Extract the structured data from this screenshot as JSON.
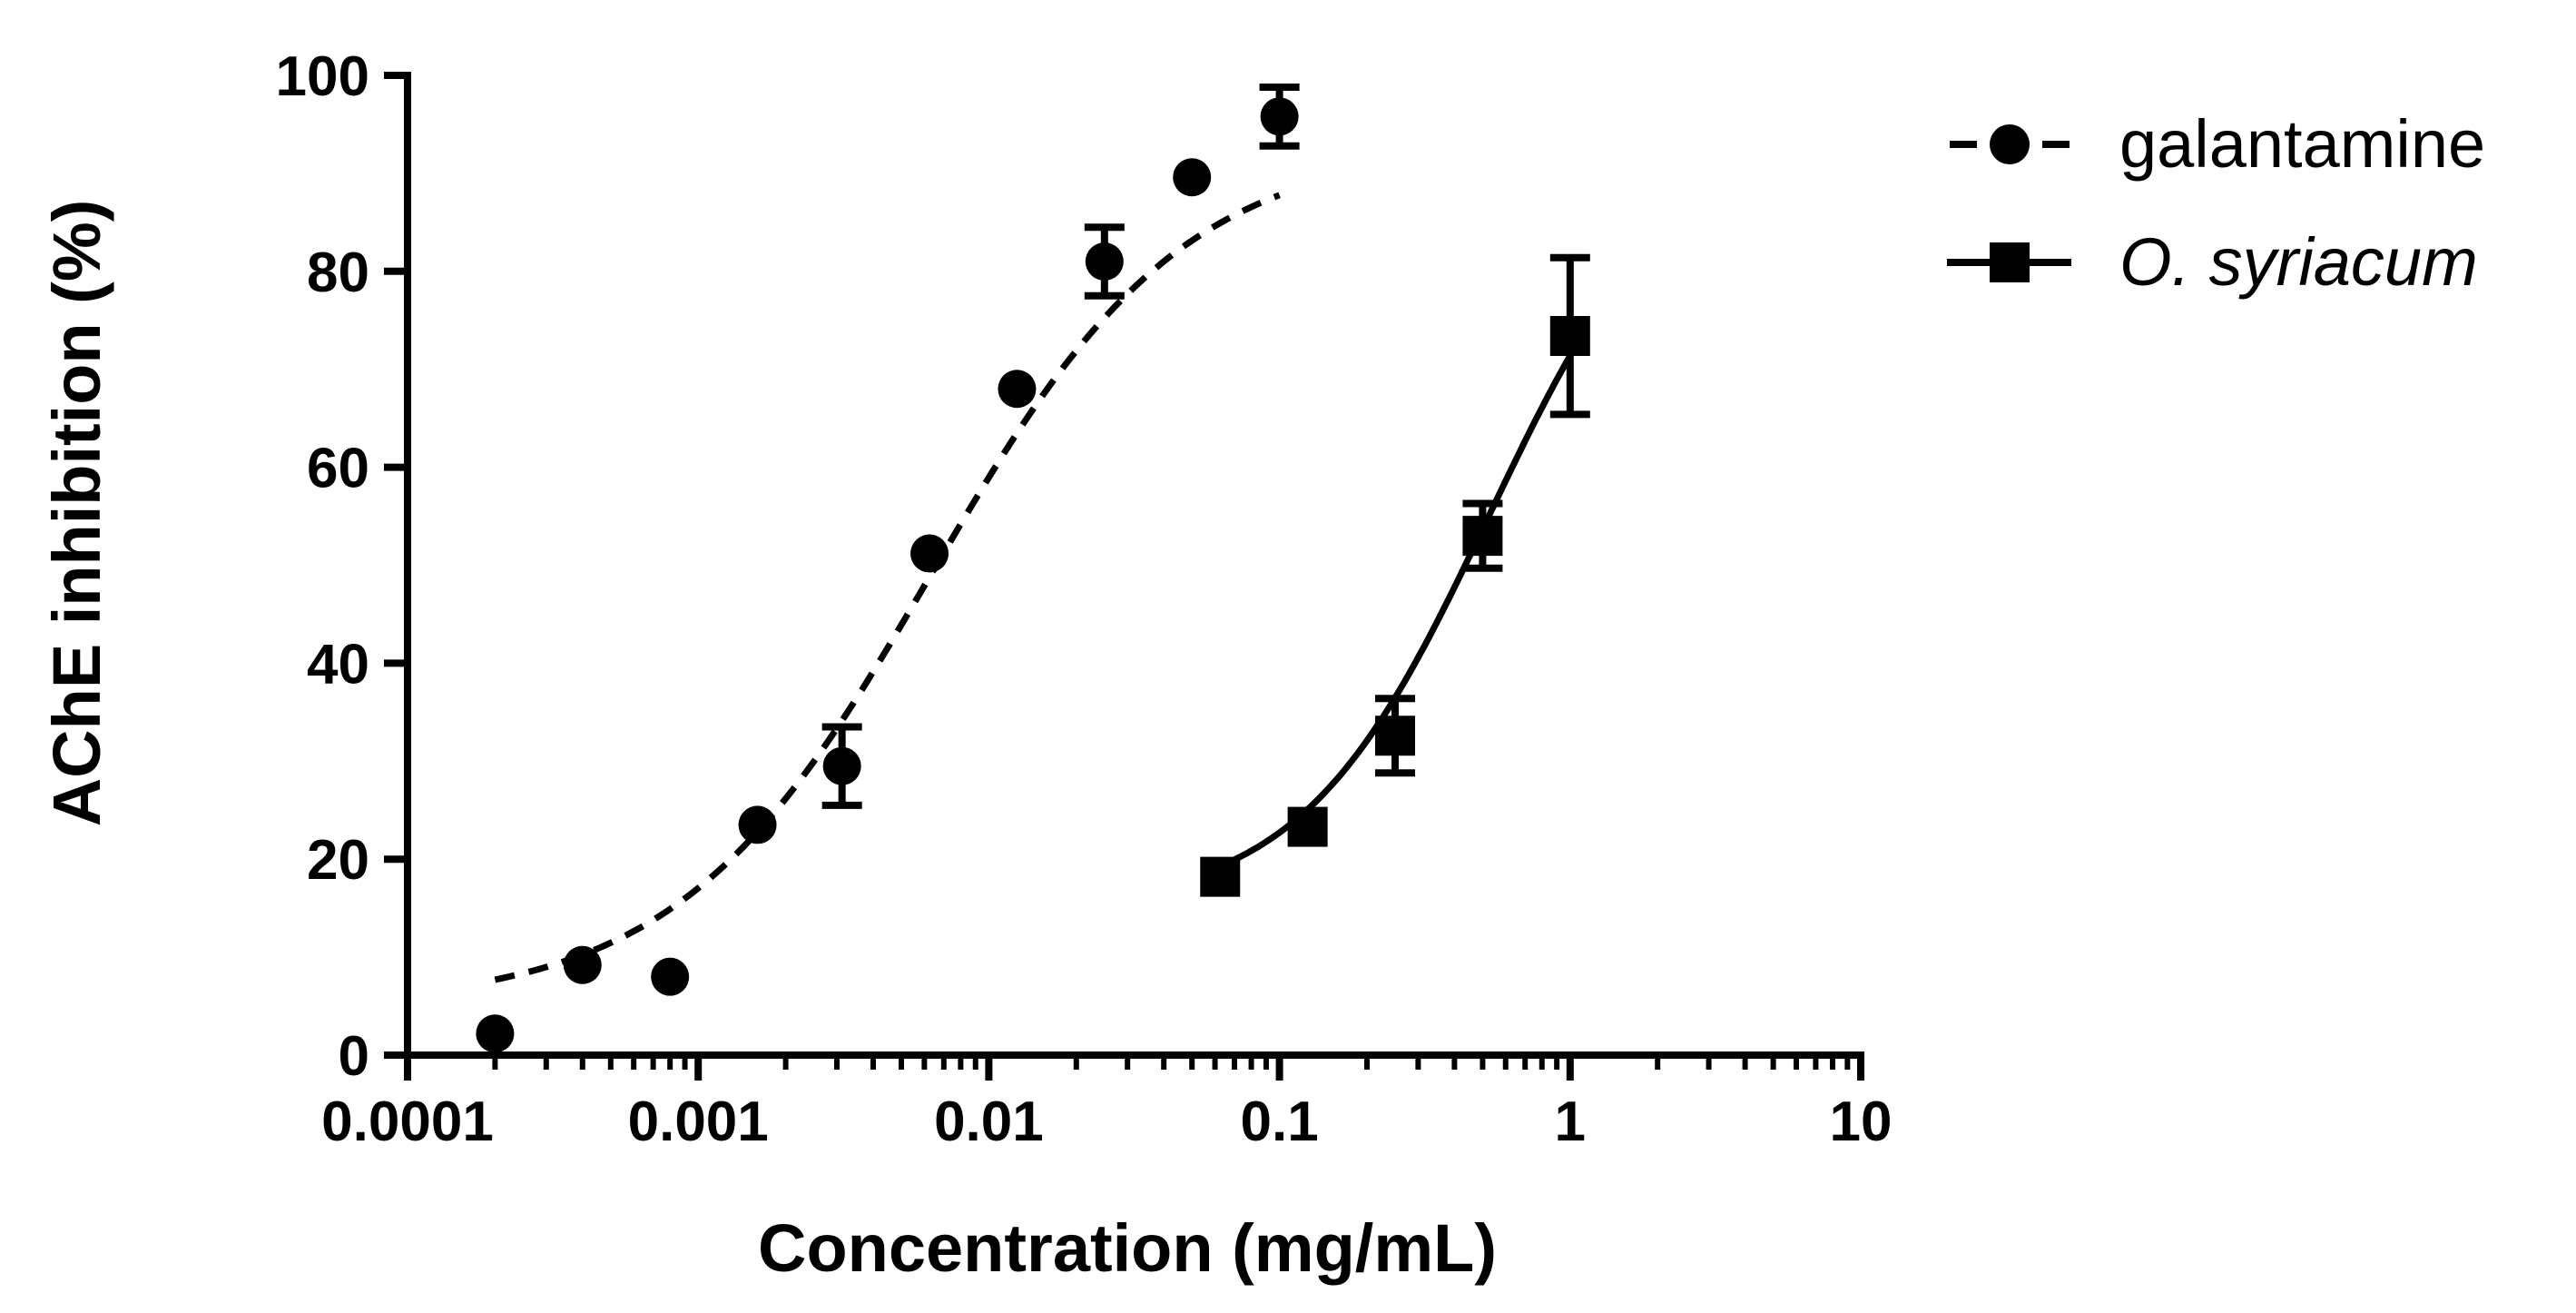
{
  "chart_data": {
    "type": "scatter",
    "title": "",
    "xlabel": "Concentration (mg/mL)",
    "ylabel": "AChE inhibition (%)",
    "xscale": "log",
    "xlim": [
      0.0001,
      10
    ],
    "ylim": [
      0,
      100
    ],
    "x_tick_labels": [
      "0.0001",
      "0.001",
      "0.01",
      "0.1",
      "1",
      "10"
    ],
    "y_tick_labels": [
      "0",
      "20",
      "40",
      "60",
      "80",
      "100"
    ],
    "legend_position": "top-right",
    "series": [
      {
        "name": "galantamine",
        "marker": "circle",
        "line": "dashed",
        "color": "#000000",
        "points": [
          {
            "x": 0.0002,
            "y": 2.2,
            "err": 0
          },
          {
            "x": 0.0004,
            "y": 9.2,
            "err": 0
          },
          {
            "x": 0.0008,
            "y": 8.0,
            "err": 0
          },
          {
            "x": 0.0016,
            "y": 23.5,
            "err": 0
          },
          {
            "x": 0.003125,
            "y": 29.5,
            "err": 4.0
          },
          {
            "x": 0.00625,
            "y": 51.2,
            "err": 0
          },
          {
            "x": 0.0125,
            "y": 68.0,
            "err": 0
          },
          {
            "x": 0.025,
            "y": 81.0,
            "err": 3.5
          },
          {
            "x": 0.05,
            "y": 89.6,
            "err": 0
          },
          {
            "x": 0.1,
            "y": 95.8,
            "err": 3.0
          }
        ],
        "fit": {
          "bottom": 5.0,
          "top": 93.0,
          "logEC50": -2.2,
          "hill": 1.0
        }
      },
      {
        "name": "O. syriacum",
        "marker": "square",
        "line": "solid",
        "color": "#000000",
        "points": [
          {
            "x": 0.0625,
            "y": 18.2,
            "err": 0
          },
          {
            "x": 0.125,
            "y": 23.3,
            "err": 0
          },
          {
            "x": 0.25,
            "y": 32.6,
            "err": 3.8
          },
          {
            "x": 0.5,
            "y": 53.0,
            "err": 3.3
          },
          {
            "x": 1.0,
            "y": 73.4,
            "err": 8.0
          }
        ],
        "fit": {
          "bottom": 15.0,
          "top": 95.0,
          "logEC50": -0.28,
          "hill": 1.35
        }
      }
    ]
  }
}
